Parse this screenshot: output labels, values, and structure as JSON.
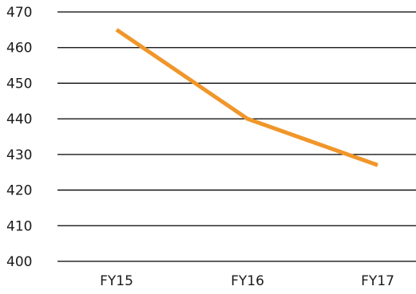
{
  "chart_data": {
    "type": "line",
    "categories": [
      "FY15",
      "FY16",
      "FY17"
    ],
    "series": [
      {
        "values": [
          465,
          440,
          427
        ]
      }
    ],
    "ylim": [
      400,
      470
    ],
    "yticks": [
      400,
      410,
      420,
      430,
      440,
      450,
      460,
      470
    ],
    "grid": true,
    "legend": "none",
    "colors": {
      "line": "#F0962A",
      "grid": "#000000",
      "text": "#1a1a1a"
    }
  }
}
